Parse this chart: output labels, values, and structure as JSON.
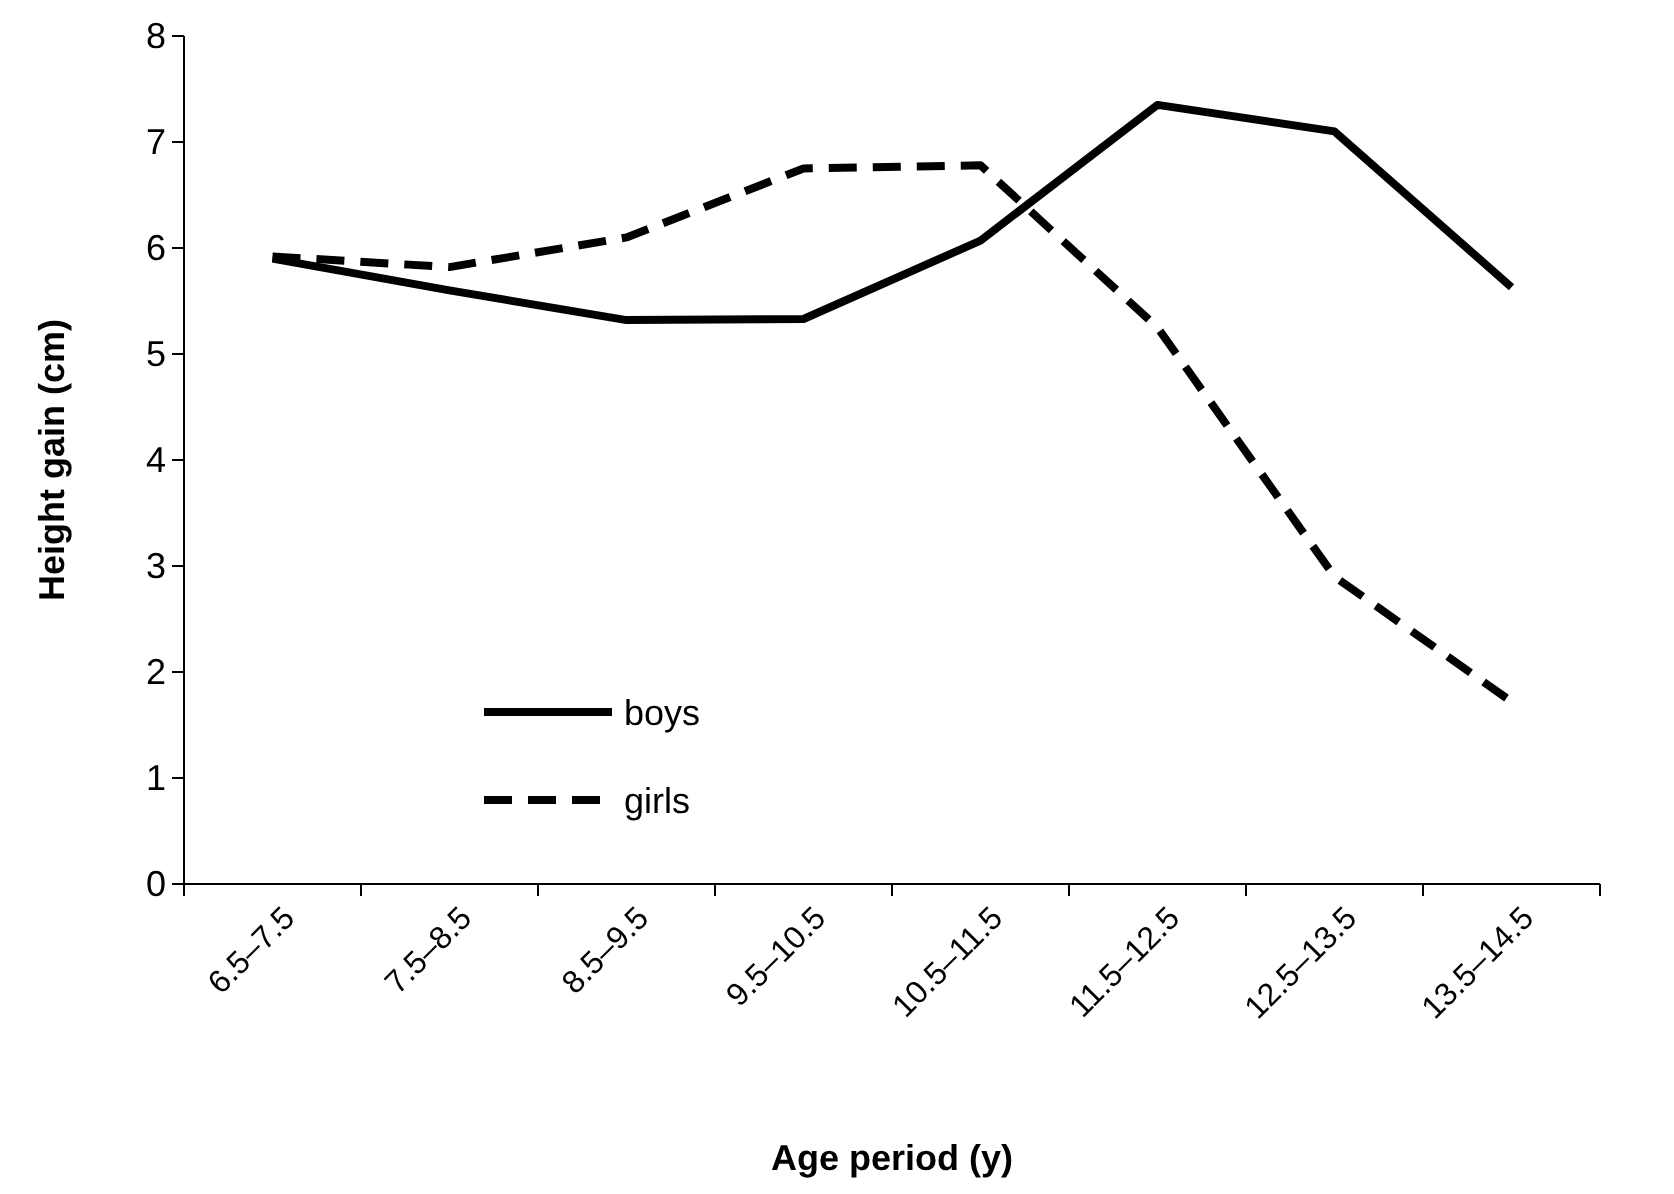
{
  "chart_data": {
    "type": "line",
    "xlabel": "Age period (y)",
    "ylabel": "Height gain (cm)",
    "categories": [
      "6.5–7.5",
      "7.5–8.5",
      "8.5–9.5",
      "9.5–10.5",
      "10.5–11.5",
      "11.5–12.5",
      "12.5–13.5",
      "13.5–14.5"
    ],
    "series": [
      {
        "name": "boys",
        "color": "#000000",
        "line_style": "solid",
        "values": [
          5.9,
          5.6,
          5.32,
          5.33,
          6.07,
          7.35,
          7.1,
          5.63
        ]
      },
      {
        "name": "girls",
        "color": "#000000",
        "line_style": "dashed",
        "values": [
          5.92,
          5.82,
          6.1,
          6.75,
          6.78,
          5.25,
          2.9,
          1.72
        ]
      }
    ],
    "ylim": [
      0,
      8
    ],
    "yticks": [
      0,
      1,
      2,
      3,
      4,
      5,
      6,
      7,
      8
    ],
    "grid": false,
    "legend": "bottom left",
    "marker": "none"
  }
}
